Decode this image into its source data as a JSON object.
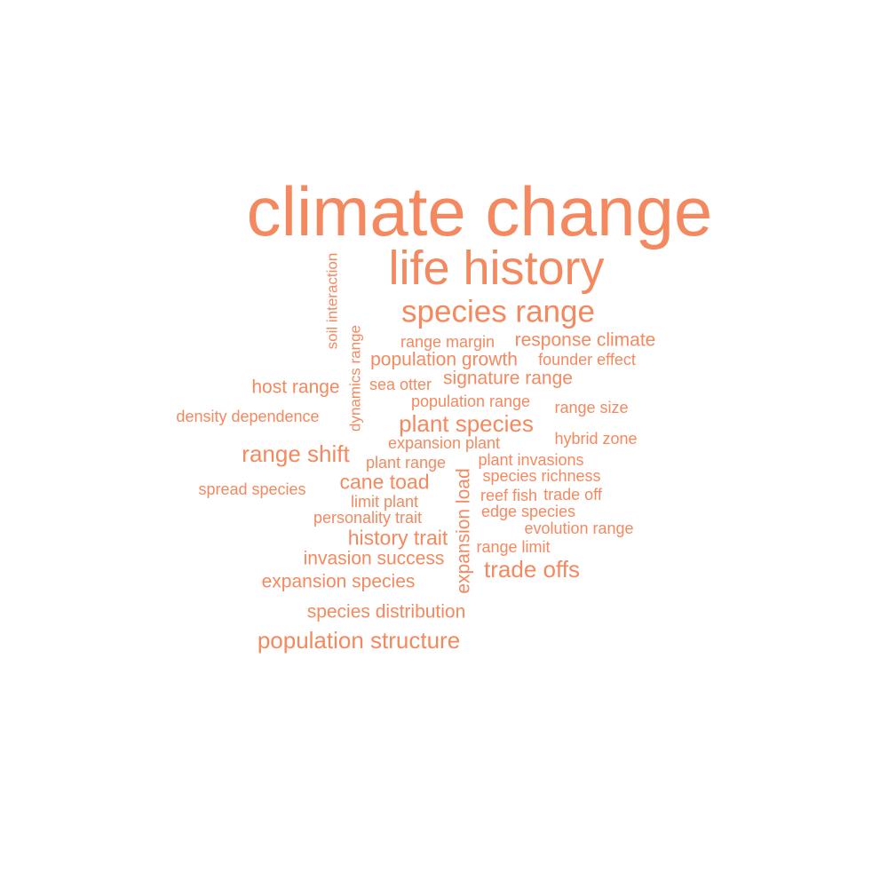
{
  "color": "#F4895F",
  "words": [
    {
      "text": "climate change"
    },
    {
      "text": "life history"
    },
    {
      "text": "species range"
    },
    {
      "text": "soil interaction"
    },
    {
      "text": "range margin"
    },
    {
      "text": "response climate"
    },
    {
      "text": "dynamics range"
    },
    {
      "text": "population growth"
    },
    {
      "text": "founder effect"
    },
    {
      "text": "host range"
    },
    {
      "text": "sea otter"
    },
    {
      "text": "signature range"
    },
    {
      "text": "population range"
    },
    {
      "text": "range size"
    },
    {
      "text": "density dependence"
    },
    {
      "text": "plant species"
    },
    {
      "text": "expansion plant"
    },
    {
      "text": "hybrid zone"
    },
    {
      "text": "range shift"
    },
    {
      "text": "plant range"
    },
    {
      "text": "plant invasions"
    },
    {
      "text": "species richness"
    },
    {
      "text": "cane toad"
    },
    {
      "text": "spread species"
    },
    {
      "text": "limit plant"
    },
    {
      "text": "reef fish"
    },
    {
      "text": "trade off"
    },
    {
      "text": "edge species"
    },
    {
      "text": "personality trait"
    },
    {
      "text": "evolution range"
    },
    {
      "text": "history trait"
    },
    {
      "text": "expansion load"
    },
    {
      "text": "range limit"
    },
    {
      "text": "invasion success"
    },
    {
      "text": "trade offs"
    },
    {
      "text": "expansion species"
    },
    {
      "text": "species distribution"
    },
    {
      "text": "population structure"
    }
  ]
}
